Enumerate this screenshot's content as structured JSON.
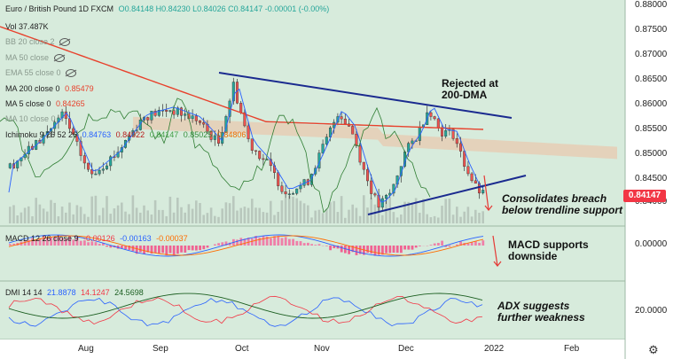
{
  "header": {
    "symbol": "Euro / British Pound  1D  FXCM",
    "ohlc": "O0.84148 H0.84230 L0.84026 C0.84147 -0.00001 (-0.00%)",
    "vol": "Vol  37.487K"
  },
  "indicators": {
    "bb": "BB 20 close 2",
    "ma50": "MA 50 close",
    "ema55": "EMA 55 close 0",
    "ma200_label": "MA 200 close 0",
    "ma200_value": "0.85479",
    "ma5_label": "MA 5 close 0",
    "ma5_value": "0.84265",
    "hidden": "MA 10 close 0",
    "ichimoku_label": "Ichimoku 9 26 52 26",
    "ichimoku_values": [
      "0.84763",
      "0.84922",
      "0.84147",
      "0.85025",
      "0.84806"
    ],
    "macd_label": "MACD 12 26 close 9",
    "macd_values": [
      "-0.00126",
      "-0.00163",
      "-0.00037"
    ],
    "dmi_label": "DMI 14 14",
    "dmi_values": [
      "21.8878",
      "14.1247",
      "24.5698"
    ]
  },
  "annotations": {
    "rejected_line1": "Rejected at",
    "rejected_line2": "200-DMA",
    "consolidates_line1": "Consolidates breach",
    "consolidates_line2": "below trendline support",
    "macd_line1": "MACD supports",
    "macd_line2": "downside",
    "adx_line1": "ADX suggests",
    "adx_line2": "further weakness"
  },
  "axis": {
    "price_labels": [
      "0.88000",
      "0.87500",
      "0.87000",
      "0.86500",
      "0.86000",
      "0.85500",
      "0.85000",
      "0.84500",
      "0.84000"
    ],
    "last_price": "0.84147",
    "macd_zero": "0.00000",
    "dmi_level": "20.0000",
    "months": [
      "Aug",
      "Sep",
      "Oct",
      "Nov",
      "Dec",
      "2022",
      "Feb"
    ]
  },
  "colors": {
    "background": "#d7ebdc",
    "up": "#26a69a",
    "down": "#ef5350",
    "ma200": "#e8412c",
    "trendline": "#1a2a8f",
    "kumo": "#e8c9b0"
  },
  "chart_data": {
    "type": "candlestick",
    "price_range": [
      0.838,
      0.88
    ],
    "last_close": 0.84147
  }
}
